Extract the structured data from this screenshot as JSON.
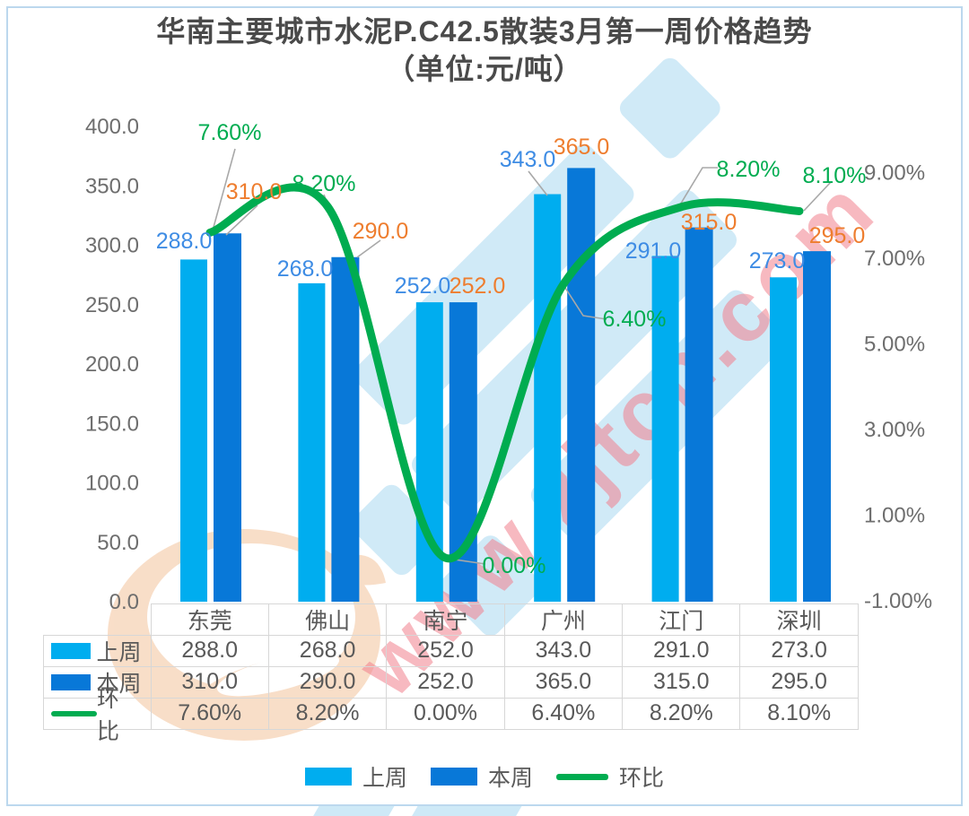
{
  "title": {
    "line1": "华南主要城市水泥P.C42.5散装3月第一周价格趋势",
    "line2": "（单位:元/吨）"
  },
  "watermark": {
    "url_text": "www.zjtcn.com"
  },
  "colors": {
    "last_week_bar": "#00ADEF",
    "this_week_bar": "#0878D8",
    "trend_line": "#00AC50",
    "label_blue": "#3E8CE4",
    "label_orange": "#EE7D2E",
    "label_green": "#00AC50",
    "axis_text": "#6e6e6e",
    "table_text": "#595959",
    "leader_gray": "#A8A8A8",
    "frame_blue": "#BCD8EE",
    "watermark_blue": "#CEE9F7",
    "watermark_pink": "#F2808E",
    "watermark_peach": "#F3BE92"
  },
  "chart_data": {
    "type": "combo-bar-line",
    "categories": [
      "东莞",
      "佛山",
      "南宁",
      "广州",
      "江门",
      "深圳"
    ],
    "series": [
      {
        "name": "上周",
        "type": "bar",
        "axis": "left",
        "values": [
          288.0,
          268.0,
          252.0,
          343.0,
          291.0,
          273.0
        ],
        "labels": [
          "288.0",
          "268.0",
          "252.0",
          "343.0",
          "291.0",
          "273.0"
        ]
      },
      {
        "name": "本周",
        "type": "bar",
        "axis": "left",
        "values": [
          310.0,
          290.0,
          252.0,
          365.0,
          315.0,
          295.0
        ],
        "labels": [
          "310.0",
          "290.0",
          "252.0",
          "365.0",
          "315.0",
          "295.0"
        ]
      },
      {
        "name": "环比",
        "type": "line",
        "axis": "right",
        "values": [
          7.6,
          8.2,
          0.0,
          6.4,
          8.2,
          8.1
        ],
        "labels": [
          "7.60%",
          "8.20%",
          "0.00%",
          "6.40%",
          "8.20%",
          "8.10%"
        ]
      }
    ],
    "left_axis": {
      "min": 0,
      "max": 400,
      "step": 50,
      "tick_labels": [
        "0.0",
        "50.0",
        "100.0",
        "150.0",
        "200.0",
        "250.0",
        "300.0",
        "350.0",
        "400.0"
      ]
    },
    "right_axis": {
      "min": -1,
      "max": 9,
      "step": 2,
      "tick_labels": [
        "-1.00%",
        "1.00%",
        "3.00%",
        "5.00%",
        "7.00%",
        "9.00%"
      ]
    },
    "grid": false,
    "legend_position": "bottom"
  },
  "table": {
    "columns": [
      "东莞",
      "佛山",
      "南宁",
      "广州",
      "江门",
      "深圳"
    ],
    "rows": [
      {
        "label": "上周",
        "swatch": "bar",
        "values": [
          "288.0",
          "268.0",
          "252.0",
          "343.0",
          "291.0",
          "273.0"
        ]
      },
      {
        "label": "本周",
        "swatch": "bar",
        "values": [
          "310.0",
          "290.0",
          "252.0",
          "365.0",
          "315.0",
          "295.0"
        ]
      },
      {
        "label": "环比",
        "swatch": "line",
        "values": [
          "7.60%",
          "8.20%",
          "0.00%",
          "6.40%",
          "8.20%",
          "8.10%"
        ]
      }
    ]
  },
  "legend": {
    "items": [
      {
        "label": "上周",
        "swatch": "bar"
      },
      {
        "label": "本周",
        "swatch": "bar"
      },
      {
        "label": "环比",
        "swatch": "line"
      }
    ]
  }
}
